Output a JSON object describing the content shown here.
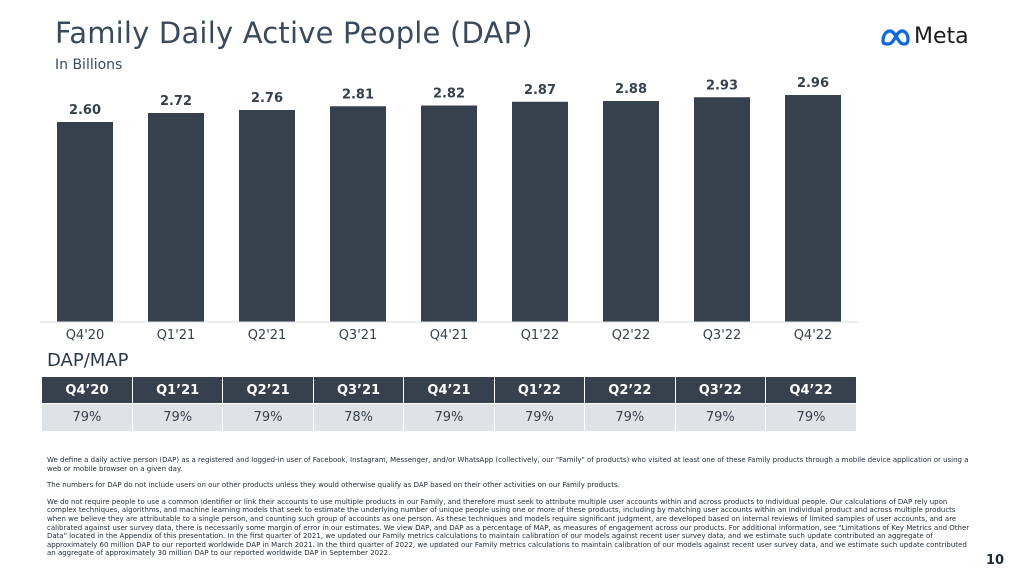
{
  "header": {
    "title": "Family Daily Active People (DAP)",
    "subtitle": "In Billions",
    "logo_text": "Meta"
  },
  "colors": {
    "bar": "#37414d",
    "logo_blue": "#0a66e4",
    "table_header": "#37414d",
    "table_row": "#dfe3e8"
  },
  "chart_data": {
    "type": "bar",
    "categories": [
      "Q4'20",
      "Q1'21",
      "Q2'21",
      "Q3'21",
      "Q4'21",
      "Q1'22",
      "Q2'22",
      "Q3'22",
      "Q4'22"
    ],
    "values": [
      2.6,
      2.72,
      2.76,
      2.81,
      2.82,
      2.87,
      2.88,
      2.93,
      2.96
    ],
    "value_labels": [
      "2.60",
      "2.72",
      "2.76",
      "2.81",
      "2.82",
      "2.87",
      "2.88",
      "2.93",
      "2.96"
    ],
    "title": "Family Daily Active People (DAP)",
    "subtitle": "In Billions",
    "ylim": [
      0,
      3.0
    ],
    "grid": false,
    "legend": "none"
  },
  "dap_map": {
    "title": "DAP/MAP",
    "headers": [
      "Q4’20",
      "Q1’21",
      "Q2’21",
      "Q3’21",
      "Q4’21",
      "Q1’22",
      "Q2’22",
      "Q3’22",
      "Q4’22"
    ],
    "values": [
      "79%",
      "79%",
      "79%",
      "78%",
      "79%",
      "79%",
      "79%",
      "79%",
      "79%"
    ]
  },
  "notes": [
    "We define a daily active person (DAP) as a registered and logged-in user of Facebook, Instagram, Messenger, and/or WhatsApp (collectively, our \"Family\" of products) who visited at least one of these Family products through a mobile device application or using a web or mobile browser on a given day.",
    "The numbers for DAP do not include users on our other products unless they would otherwise qualify as DAP based on their other activities on our Family products.",
    "We do not require people to use a common identifier or link their accounts to use multiple products in our Family, and therefore must seek to attribute multiple user accounts within and across products to individual people. Our calculations of DAP rely upon complex techniques, algorithms, and machine learning models that seek to estimate the underlying number of unique people using one or more of these products, including by matching user accounts within an individual product and across multiple products when we believe they are attributable to a single person, and counting such group of accounts as one person. As these techniques and models require significant judgment, are developed based on internal reviews of limited samples of user accounts, and are calibrated against user survey data, there is necessarily some margin of error in our estimates. We view DAP, and DAP as a percentage of MAP, as measures of engagement across our products. For additional information, see \"Limitations of Key Metrics and Other Data\" located in the Appendix of this presentation. In the first quarter of 2021, we updated our Family metrics calculations to maintain calibration of our models against recent user survey data, and we estimate such update contributed an aggregate of approximately 60 million DAP to our reported worldwide DAP in March 2021. In the third quarter of 2022, we updated our Family metrics calculations to maintain calibration of our models against recent user survey data, and we estimate such update contributed an aggregate of approximately 30 million DAP to our reported worldwide DAP in September 2022."
  ],
  "page_number": "10"
}
